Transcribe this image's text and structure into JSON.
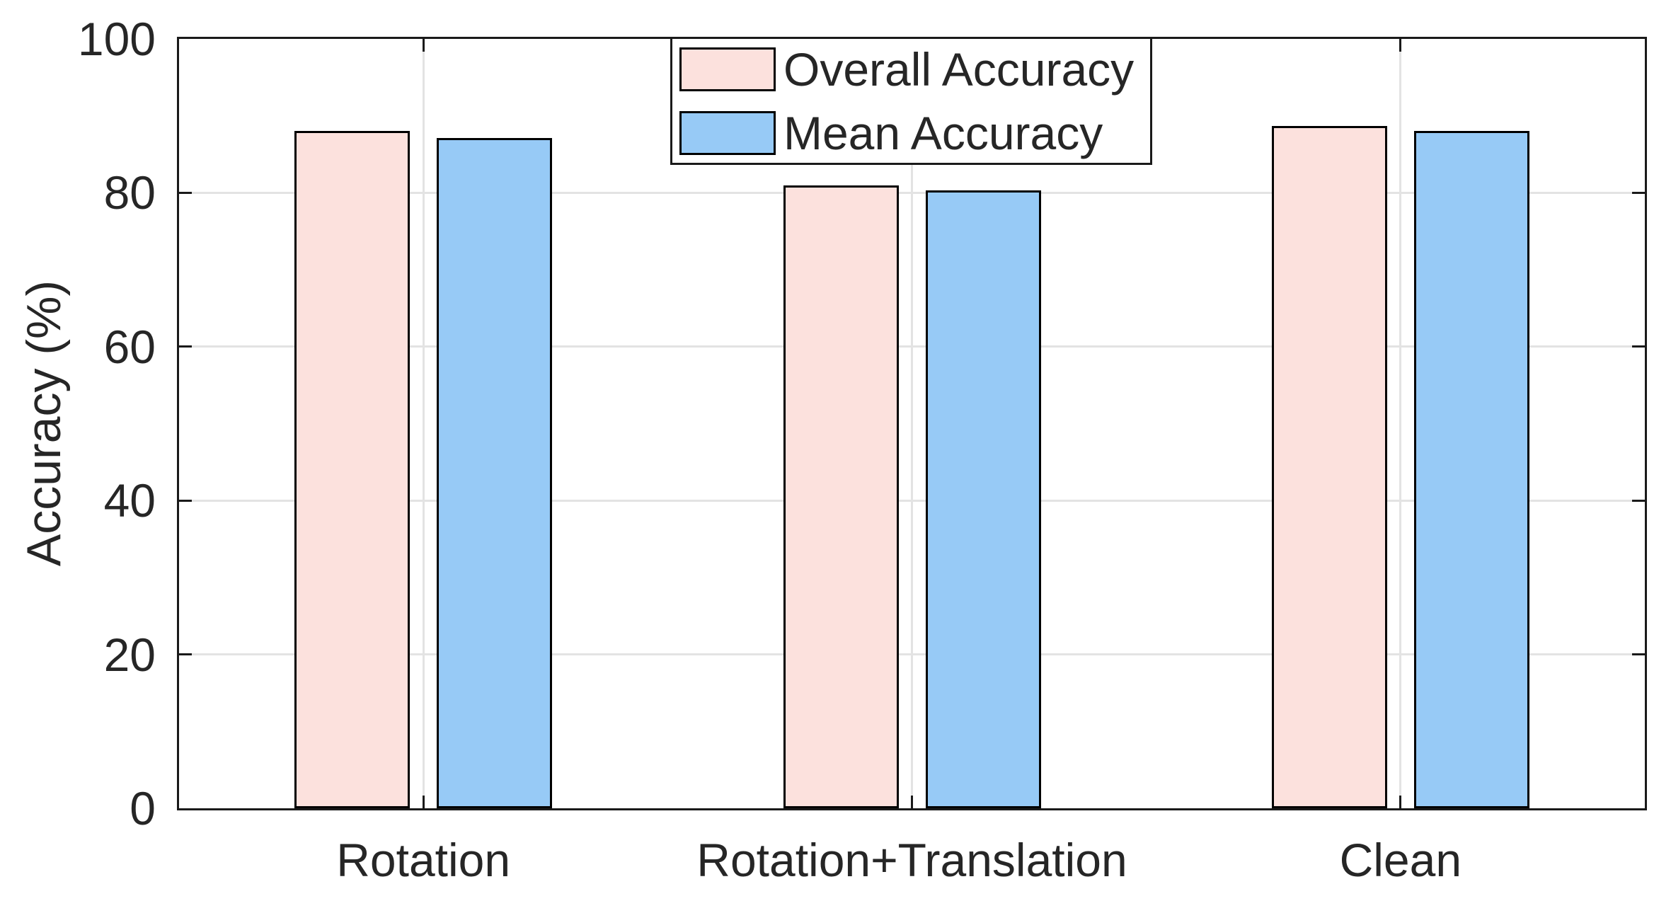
{
  "chart_data": {
    "type": "bar",
    "title": "",
    "xlabel": "",
    "ylabel": "Accuracy (%)",
    "ylim": [
      0,
      100
    ],
    "yticks": [
      0,
      20,
      40,
      60,
      80,
      100
    ],
    "grid": "on",
    "legend_position": "top-center",
    "categories": [
      "Rotation",
      "Rotation+Translation",
      "Clean"
    ],
    "series": [
      {
        "name": "Overall Accuracy",
        "values": [
          88.0,
          81.0,
          88.7
        ]
      },
      {
        "name": "Mean Accuracy",
        "values": [
          87.1,
          80.3,
          88.0
        ]
      }
    ]
  },
  "colors": {
    "overall_fill": "#fce1dd",
    "mean_fill": "#97caf6",
    "bar_edge": "#000000",
    "axis": "#1a1a1a",
    "grid": "#e3e3e3",
    "text": "#262626",
    "background": "#ffffff"
  }
}
